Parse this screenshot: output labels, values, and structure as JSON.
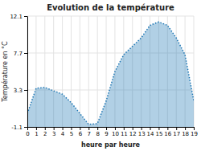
{
  "chart_data": {
    "type": "area",
    "title": "Evolution de la température",
    "xlabel": "heure par heure",
    "ylabel": "Température en °C",
    "x": [
      0,
      1,
      2,
      3,
      4,
      5,
      6,
      7,
      8,
      9,
      10,
      11,
      12,
      13,
      14,
      15,
      16,
      17,
      18,
      19
    ],
    "values": [
      0.5,
      3.5,
      3.6,
      3.2,
      2.8,
      1.8,
      0.5,
      -0.8,
      -0.7,
      2.0,
      5.5,
      7.5,
      8.5,
      9.5,
      11.0,
      11.4,
      11.0,
      9.5,
      7.5,
      2.0
    ],
    "xlim": [
      0,
      19
    ],
    "ylim": [
      -1.1,
      12.1
    ],
    "xticks": [
      0,
      1,
      2,
      3,
      4,
      5,
      6,
      7,
      8,
      9,
      10,
      11,
      12,
      13,
      14,
      15,
      16,
      17,
      18,
      19
    ],
    "yticks": [
      -1.1,
      3.3,
      7.7,
      12.1
    ],
    "grid": true,
    "line_style": "dotted"
  }
}
